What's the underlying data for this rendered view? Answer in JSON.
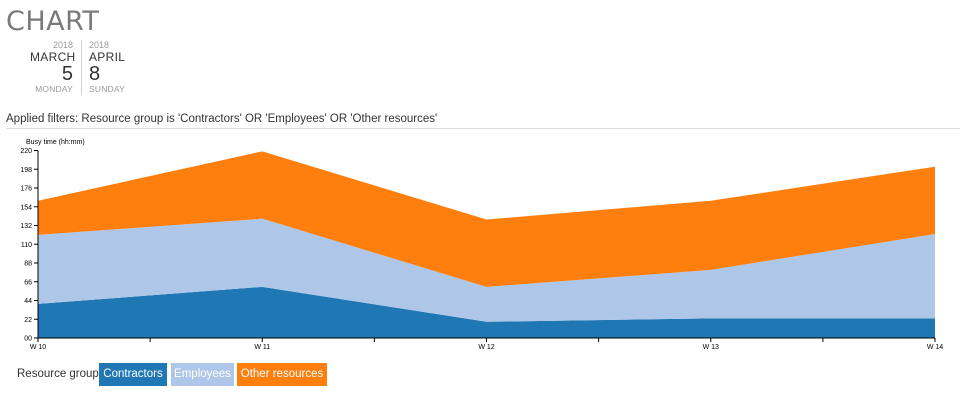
{
  "page": {
    "title": "CHART"
  },
  "date_range": {
    "start": {
      "year": "2018",
      "month": "MARCH",
      "day": "5",
      "weekday": "MONDAY"
    },
    "end": {
      "year": "2018",
      "month": "APRIL",
      "day": "8",
      "weekday": "SUNDAY"
    }
  },
  "filters_text": "Applied filters: Resource group is 'Contractors' OR 'Employees' OR 'Other resources'",
  "legend": {
    "title": "Resource group",
    "items": [
      "Contractors",
      "Employees",
      "Other resources"
    ]
  },
  "chart_data": {
    "type": "area",
    "stacked": true,
    "ylabel": "Busy time (hh:mm)",
    "xlabel": "",
    "categories": [
      "W 10",
      "W 11",
      "W 12",
      "W 13",
      "W 14"
    ],
    "y_ticks": [
      "00",
      "22",
      "44",
      "66",
      "88",
      "110",
      "132",
      "154",
      "176",
      "198",
      "220"
    ],
    "ylim": [
      0,
      220
    ],
    "series": [
      {
        "name": "Contractors",
        "color": "#1f77b4",
        "values": [
          40,
          60,
          19,
          23,
          23
        ]
      },
      {
        "name": "Employees",
        "color": "#aec7e8",
        "values": [
          81,
          80,
          41,
          57,
          99
        ]
      },
      {
        "name": "Other resources",
        "color": "#ff7f0e",
        "values": [
          40,
          79,
          79,
          81,
          79
        ]
      }
    ],
    "grid": false,
    "legend_position": "bottom-left"
  }
}
